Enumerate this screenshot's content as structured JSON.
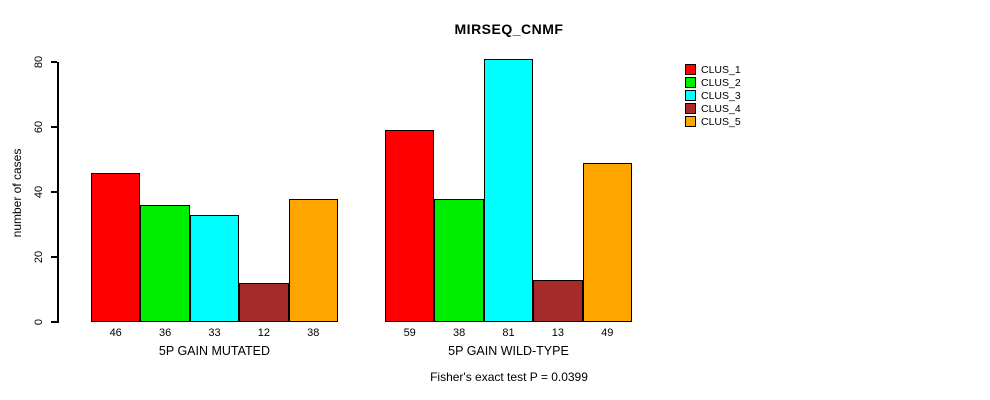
{
  "title": "MIRSEQ_CNMF",
  "ylabel": "number of cases",
  "footer": "Fisher's exact test P = 0.0399",
  "legend": {
    "items": [
      {
        "label": "CLUS_1",
        "color": "#ff0000"
      },
      {
        "label": "CLUS_2",
        "color": "#00ee00"
      },
      {
        "label": "CLUS_3",
        "color": "#00ffff"
      },
      {
        "label": "CLUS_4",
        "color": "#a52a2a"
      },
      {
        "label": "CLUS_5",
        "color": "#ffa500"
      }
    ]
  },
  "chart_data": {
    "type": "bar",
    "title": "MIRSEQ_CNMF",
    "xlabel": "",
    "ylabel": "number of cases",
    "ylim": [
      0,
      80
    ],
    "yticks": [
      0,
      20,
      40,
      60,
      80
    ],
    "grid": false,
    "legend_position": "top-right",
    "series": [
      {
        "name": "CLUS_1",
        "color": "#ff0000",
        "values": [
          46,
          59
        ]
      },
      {
        "name": "CLUS_2",
        "color": "#00ee00",
        "values": [
          36,
          38
        ]
      },
      {
        "name": "CLUS_3",
        "color": "#00ffff",
        "values": [
          33,
          81
        ]
      },
      {
        "name": "CLUS_4",
        "color": "#a52a2a",
        "values": [
          12,
          13
        ]
      },
      {
        "name": "CLUS_5",
        "color": "#ffa500",
        "values": [
          38,
          49
        ]
      }
    ],
    "groups": [
      {
        "label": "5P GAIN MUTATED",
        "values": [
          46,
          36,
          33,
          12,
          38
        ]
      },
      {
        "label": "5P GAIN WILD-TYPE",
        "values": [
          59,
          38,
          81,
          13,
          49
        ]
      }
    ],
    "bar_value_labels_shown": true,
    "annotation": "Fisher's exact test P = 0.0399"
  }
}
